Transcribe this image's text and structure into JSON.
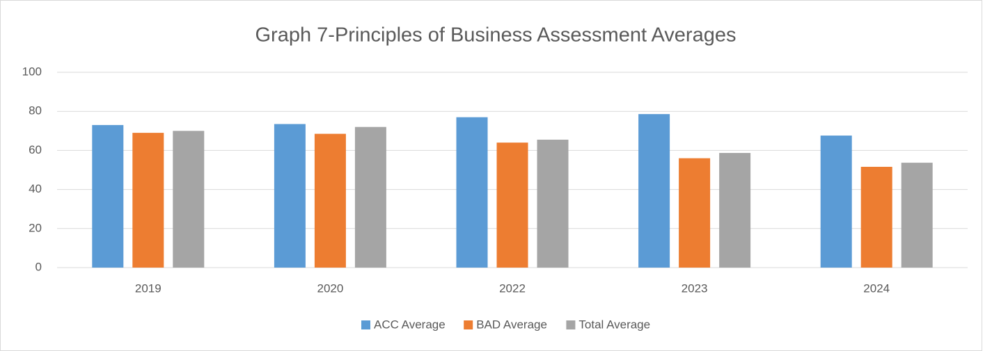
{
  "chart_data": {
    "type": "bar",
    "title": "Graph 7-Principles of Business Assessment Averages",
    "categories": [
      "2019",
      "2020",
      "2022",
      "2023",
      "2024"
    ],
    "series": [
      {
        "name": "ACC Average",
        "color": "#5b9bd5",
        "values": [
          73,
          73.5,
          77,
          78.6,
          67.6
        ]
      },
      {
        "name": "BAD Average",
        "color": "#ed7d31",
        "values": [
          69,
          68.5,
          64,
          56,
          51.6
        ]
      },
      {
        "name": "Total Average",
        "color": "#a5a5a5",
        "values": [
          70,
          72,
          65.5,
          58.7,
          53.7
        ]
      }
    ],
    "ylim": [
      0,
      100
    ],
    "yticks": [
      0,
      20,
      40,
      60,
      80,
      100
    ],
    "grid": true,
    "legend": "bottom"
  }
}
